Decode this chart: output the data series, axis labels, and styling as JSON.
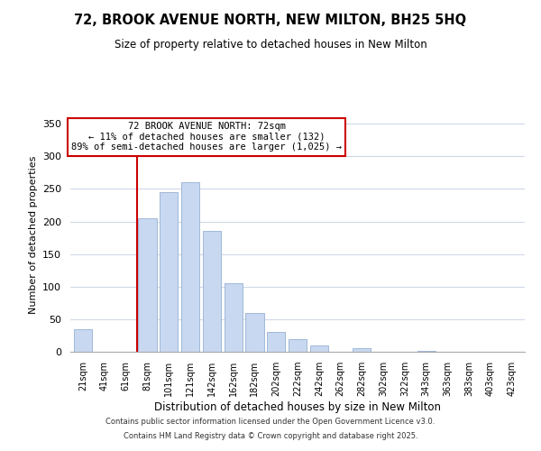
{
  "title": "72, BROOK AVENUE NORTH, NEW MILTON, BH25 5HQ",
  "subtitle": "Size of property relative to detached houses in New Milton",
  "xlabel": "Distribution of detached houses by size in New Milton",
  "ylabel": "Number of detached properties",
  "bar_labels": [
    "21sqm",
    "41sqm",
    "61sqm",
    "81sqm",
    "101sqm",
    "121sqm",
    "142sqm",
    "162sqm",
    "182sqm",
    "202sqm",
    "222sqm",
    "242sqm",
    "262sqm",
    "282sqm",
    "302sqm",
    "322sqm",
    "343sqm",
    "363sqm",
    "383sqm",
    "403sqm",
    "423sqm"
  ],
  "bar_values": [
    35,
    0,
    0,
    205,
    245,
    260,
    185,
    105,
    60,
    30,
    20,
    10,
    0,
    5,
    0,
    0,
    2,
    0,
    0,
    0,
    0
  ],
  "bar_color": "#c8d8f0",
  "bar_edge_color": "#a0b8d8",
  "vline_color": "#cc0000",
  "ylim": [
    0,
    360
  ],
  "yticks": [
    0,
    50,
    100,
    150,
    200,
    250,
    300,
    350
  ],
  "annotation_title": "72 BROOK AVENUE NORTH: 72sqm",
  "annotation_line1": "← 11% of detached houses are smaller (132)",
  "annotation_line2": "89% of semi-detached houses are larger (1,025) →",
  "annotation_box_color": "#ffffff",
  "annotation_box_edge": "#cc0000",
  "footer1": "Contains HM Land Registry data © Crown copyright and database right 2025.",
  "footer2": "Contains public sector information licensed under the Open Government Licence v3.0.",
  "background_color": "#ffffff",
  "grid_color": "#d0d8e8"
}
